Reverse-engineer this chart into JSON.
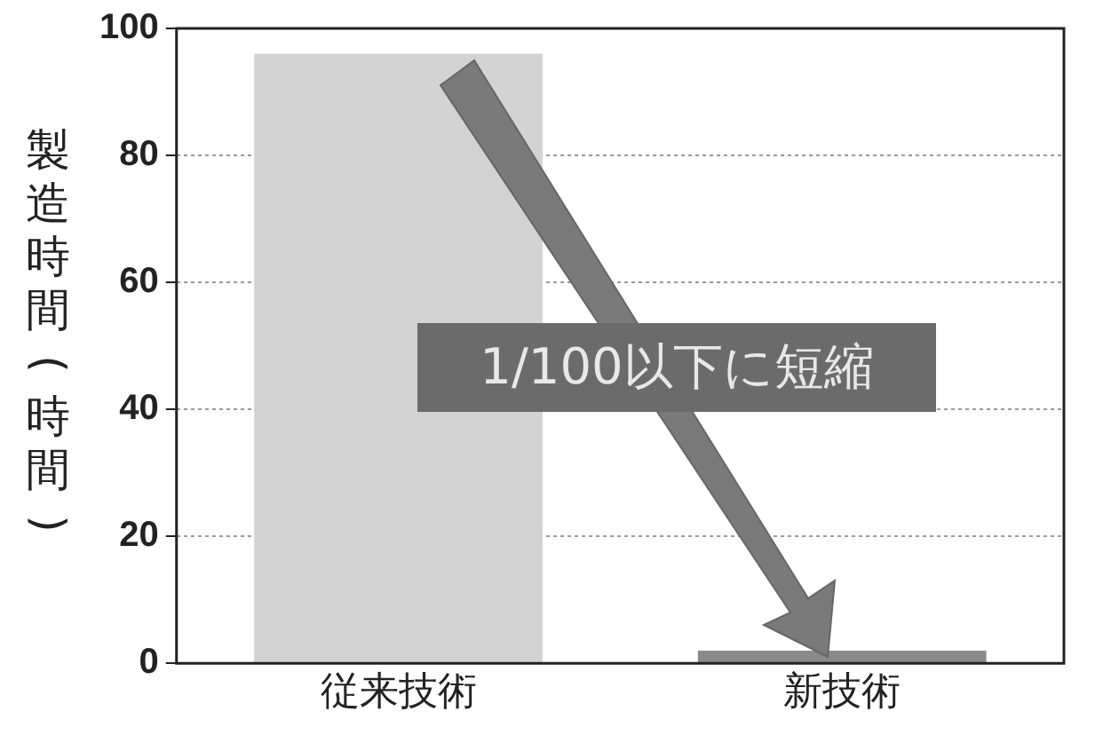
{
  "chart_data": {
    "type": "bar",
    "ylabel": "製造時間(時間)",
    "categories": [
      "従来技術",
      "新技術"
    ],
    "values": [
      96,
      2
    ],
    "colors": [
      "#d3d3d3",
      "#8a8a8a"
    ],
    "ylim": [
      0,
      100
    ],
    "yticks": [
      0,
      20,
      40,
      60,
      80,
      100
    ],
    "grid": "y",
    "legend": false,
    "annotations": [
      "1/100以下に短縮"
    ]
  }
}
